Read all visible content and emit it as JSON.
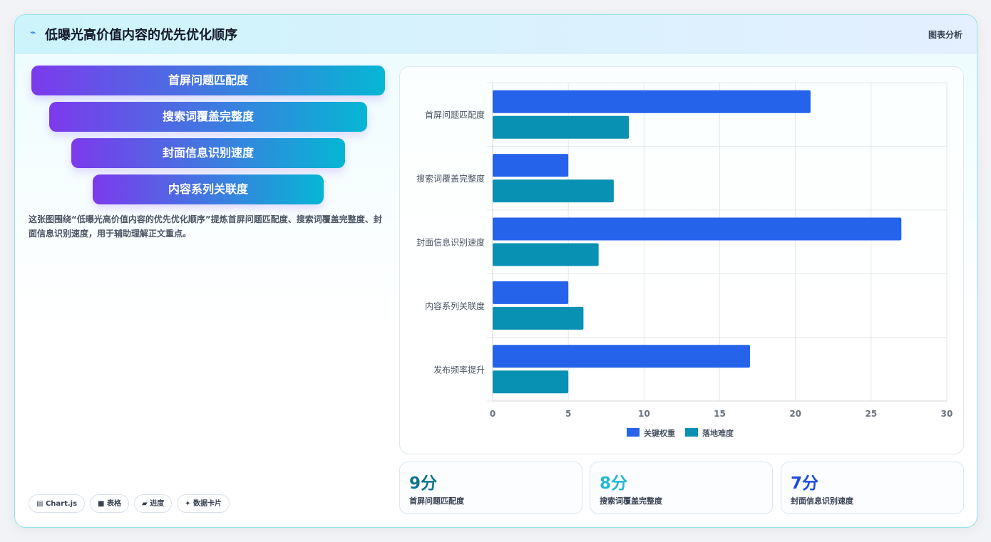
{
  "header": {
    "icon": "chart-line-icon",
    "title": "低曝光高价值内容的优先优化顺序",
    "right_label": "图表分析"
  },
  "funnel": [
    {
      "label": "首屏问题匹配度"
    },
    {
      "label": "搜索词覆盖完整度"
    },
    {
      "label": "封面信息识别速度"
    },
    {
      "label": "内容系列关联度"
    }
  ],
  "description": "这张图围绕“低曝光高价值内容的优先优化顺序”提炼首屏问题匹配度、搜索词覆盖完整度、封面信息识别速度，用于辅助理解正文重点。",
  "tags": [
    {
      "icon": "chart-icon",
      "label": "Chart.js"
    },
    {
      "icon": "table-icon",
      "label": "表格"
    },
    {
      "icon": "progress-icon",
      "label": "进度"
    },
    {
      "icon": "sparkle-icon",
      "label": "数据卡片"
    }
  ],
  "chart_data": {
    "type": "bar",
    "orientation": "horizontal",
    "categories": [
      "首屏问题匹配度",
      "搜索词覆盖完整度",
      "封面信息识别速度",
      "内容系列关联度",
      "发布频率提升"
    ],
    "series": [
      {
        "name": "关键权重",
        "color": "#2563eb",
        "values": [
          21,
          5,
          27,
          5,
          17
        ]
      },
      {
        "name": "落地难度",
        "color": "#0891b2",
        "values": [
          9,
          8,
          7,
          6,
          5
        ]
      }
    ],
    "xlim": [
      0,
      30
    ],
    "xticks": [
      0,
      5,
      10,
      15,
      20,
      25,
      30
    ],
    "grid": true,
    "legend": "bottom"
  },
  "stats": [
    {
      "value": "9分",
      "label": "首屏问题匹配度",
      "color": "#0e7490"
    },
    {
      "value": "8分",
      "label": "搜索词覆盖完整度",
      "color": "#22b8cf"
    },
    {
      "value": "7分",
      "label": "封面信息识别速度",
      "color": "#1d4ed8"
    }
  ]
}
